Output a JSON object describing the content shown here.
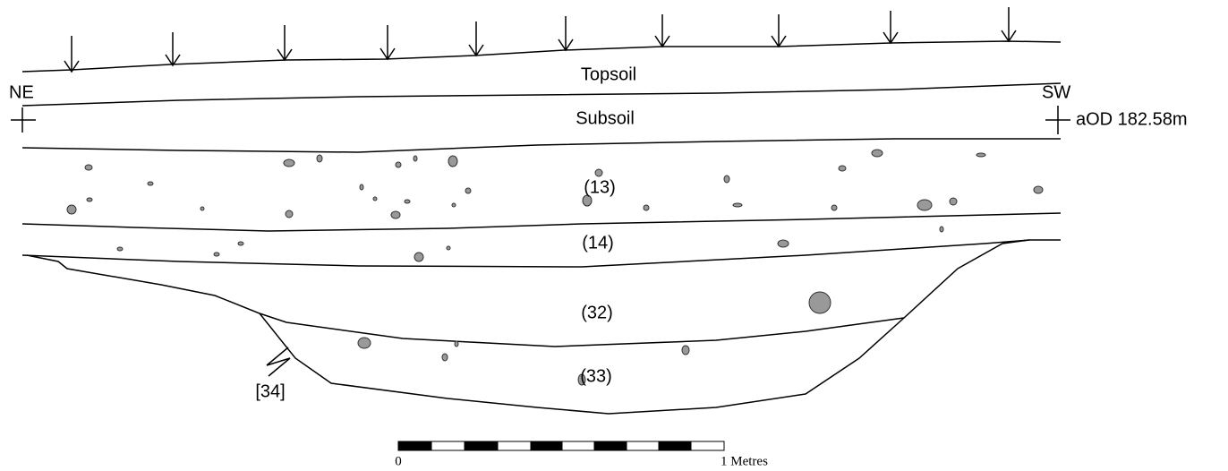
{
  "labels": {
    "topsoil": "Topsoil",
    "subsoil": "Subsoil",
    "context_13": "(13)",
    "context_14": "(14)",
    "context_32": "(32)",
    "context_33": "(33)",
    "cut_34": "[34]",
    "ne": "NE",
    "sw": "SW",
    "datum": "aOD 182.58m"
  },
  "scale": {
    "start": "0",
    "end": "1 Metres"
  }
}
